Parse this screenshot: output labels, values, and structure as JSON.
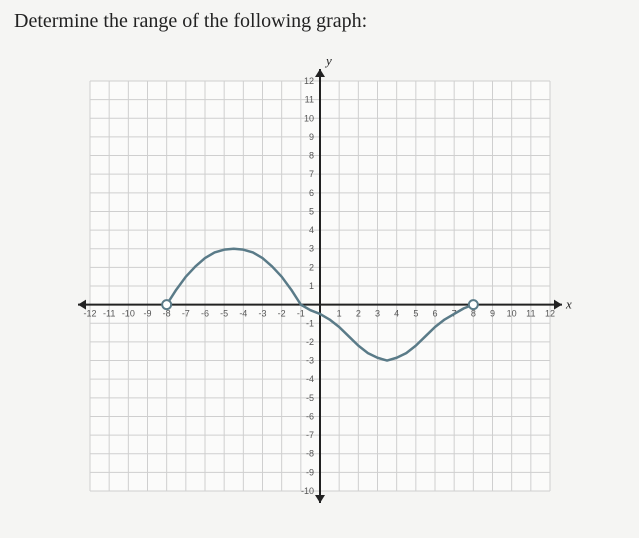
{
  "title": "Determine the range of the following graph:",
  "chart": {
    "type": "line",
    "background_color": "#fbfbfa",
    "paper_color": "#f5f5f3",
    "grid_color": "#cfcfcf",
    "axis_color": "#222222",
    "curve_color": "#5a7b88",
    "curve_width": 2.5,
    "endpoint_fill": "#ffffff",
    "endpoint_stroke": "#5a7b88",
    "endpoint_radius": 4.5,
    "xlim": [
      -12,
      12
    ],
    "ylim": [
      -10,
      12
    ],
    "xtick_step": 1,
    "ytick_step": 1,
    "axis_label_x": "x",
    "axis_label_y": "y",
    "tick_fontsize": 9,
    "tick_color": "#555555",
    "axis_label_fontsize": 13,
    "curve_points": [
      [
        -8,
        0
      ],
      [
        -7.5,
        0.8
      ],
      [
        -7,
        1.5
      ],
      [
        -6.5,
        2.05
      ],
      [
        -6,
        2.5
      ],
      [
        -5.5,
        2.8
      ],
      [
        -5,
        2.95
      ],
      [
        -4.5,
        3.0
      ],
      [
        -4,
        2.95
      ],
      [
        -3.5,
        2.8
      ],
      [
        -3,
        2.5
      ],
      [
        -2.5,
        2.05
      ],
      [
        -2,
        1.5
      ],
      [
        -1.5,
        0.8
      ],
      [
        -1,
        0
      ],
      [
        -0.5,
        -0.3
      ],
      [
        0,
        -0.5
      ],
      [
        0.5,
        -0.8
      ],
      [
        1,
        -1.2
      ],
      [
        1.5,
        -1.7
      ],
      [
        2,
        -2.2
      ],
      [
        2.5,
        -2.6
      ],
      [
        3,
        -2.85
      ],
      [
        3.5,
        -3.0
      ],
      [
        4,
        -2.85
      ],
      [
        4.5,
        -2.6
      ],
      [
        5,
        -2.2
      ],
      [
        5.5,
        -1.7
      ],
      [
        6,
        -1.2
      ],
      [
        6.5,
        -0.8
      ],
      [
        7,
        -0.5
      ],
      [
        7.5,
        -0.2
      ],
      [
        8,
        0
      ]
    ],
    "open_points": [
      [
        -8,
        0
      ],
      [
        8,
        0
      ]
    ],
    "arrows": true
  }
}
